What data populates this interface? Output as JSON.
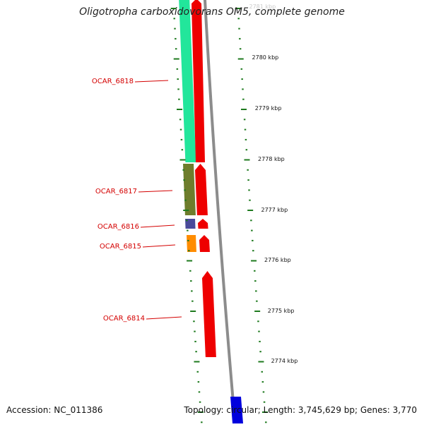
{
  "title": "Oligotropha carboxidovorans OM5, complete genome",
  "accession": "Accession: NC_011386",
  "topology": "Topology: circular; Length: 3,745,629 bp; Genes: 3,770",
  "colors": {
    "label": "#d40000",
    "tick": "#1e7a1e",
    "backbone": "#8c8c8c",
    "cds_forward": "#ee0000",
    "cds_blue": "#0000dd",
    "gene_6818": "#22e69b",
    "gene_6817": "#6e7d2c",
    "gene_6816": "#4a4a9a",
    "gene_6815": "#ff8c00"
  },
  "gene_labels": [
    {
      "id": "6818",
      "text": "OCAR_6818"
    },
    {
      "id": "6817",
      "text": "OCAR_6817"
    },
    {
      "id": "6816",
      "text": "OCAR_6816"
    },
    {
      "id": "6815",
      "text": "OCAR_6815"
    },
    {
      "id": "6814",
      "text": "OCAR_6814"
    }
  ],
  "scale_labels": [
    "2781 kbp",
    "2780 kbp",
    "2779 kbp",
    "2778 kbp",
    "2777 kbp",
    "2776 kbp",
    "2775 kbp",
    "2774 kbp"
  ]
}
